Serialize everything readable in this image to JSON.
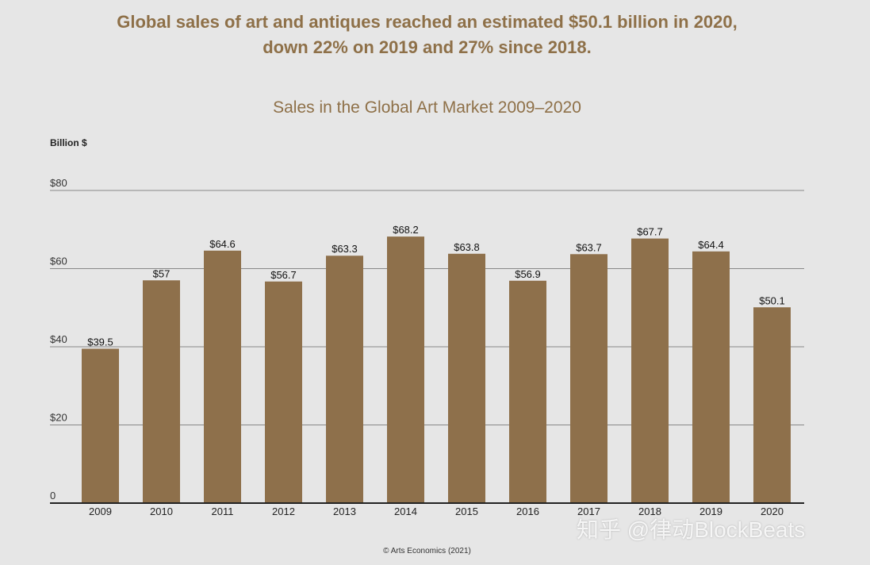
{
  "headline": {
    "line1": "Global sales of art and antiques reached an estimated $50.1 billion in 2020,",
    "line2": "down 22% on 2019 and 27% since 2018."
  },
  "source": "© Arts Economics (2021)",
  "watermark": "知乎 @律动BlockBeats",
  "colors": {
    "bar": "#8e704b",
    "title": "#8e7048",
    "background": "#e6e6e6",
    "grid": "#888888"
  },
  "chart_data": {
    "type": "bar",
    "title": "Sales in the Global Art Market 2009–2020",
    "ylabel": "Billion $",
    "xlabel": "",
    "categories": [
      "2009",
      "2010",
      "2011",
      "2012",
      "2013",
      "2014",
      "2015",
      "2016",
      "2017",
      "2018",
      "2019",
      "2020"
    ],
    "values": [
      39.5,
      57,
      64.6,
      56.7,
      63.3,
      68.2,
      63.8,
      56.9,
      63.7,
      67.7,
      64.4,
      50.1
    ],
    "data_labels": [
      "$39.5",
      "$57",
      "$64.6",
      "$56.7",
      "$63.3",
      "$68.2",
      "$63.8",
      "$56.9",
      "$63.7",
      "$67.7",
      "$64.4",
      "$50.1"
    ],
    "yticks": [
      0,
      20,
      40,
      60,
      80
    ],
    "ytick_labels": [
      "0",
      "$20",
      "$40",
      "$60",
      "$80"
    ],
    "ylim": [
      0,
      80
    ],
    "grid": true,
    "legend": "none"
  }
}
